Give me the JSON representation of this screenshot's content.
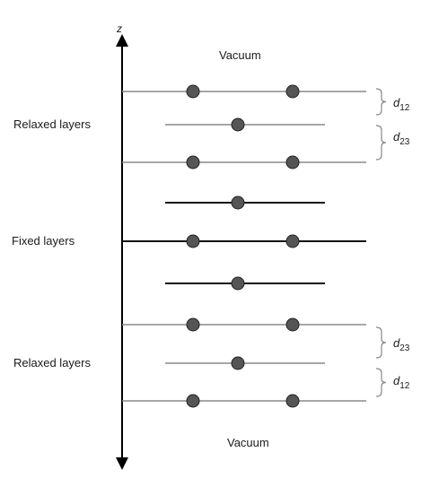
{
  "axis": {
    "label": "z"
  },
  "regions": {
    "vacuum_top": "Vacuum",
    "relaxed_top": "Relaxed layers",
    "fixed": "Fixed layers",
    "relaxed_bottom": "Relaxed layers",
    "vacuum_bottom": "Vacuum"
  },
  "spacings": [
    {
      "symbol": "d",
      "subscript": "12"
    },
    {
      "symbol": "d",
      "subscript": "23"
    },
    {
      "symbol": "d",
      "subscript": "23"
    },
    {
      "symbol": "d",
      "subscript": "12"
    }
  ],
  "layers": [
    {
      "type": "relaxed",
      "atoms": 2
    },
    {
      "type": "relaxed",
      "atoms": 1
    },
    {
      "type": "relaxed",
      "atoms": 2
    },
    {
      "type": "fixed",
      "atoms": 1
    },
    {
      "type": "fixed",
      "atoms": 2
    },
    {
      "type": "fixed",
      "atoms": 1
    },
    {
      "type": "relaxed",
      "atoms": 2
    },
    {
      "type": "relaxed",
      "atoms": 1
    },
    {
      "type": "relaxed",
      "atoms": 2
    }
  ],
  "colors": {
    "axis": "#000000",
    "relaxed_line": "#8a8a8a",
    "fixed_line": "#111111",
    "atom_fill": "#555555",
    "atom_stroke": "#222222",
    "brace": "#888888"
  }
}
